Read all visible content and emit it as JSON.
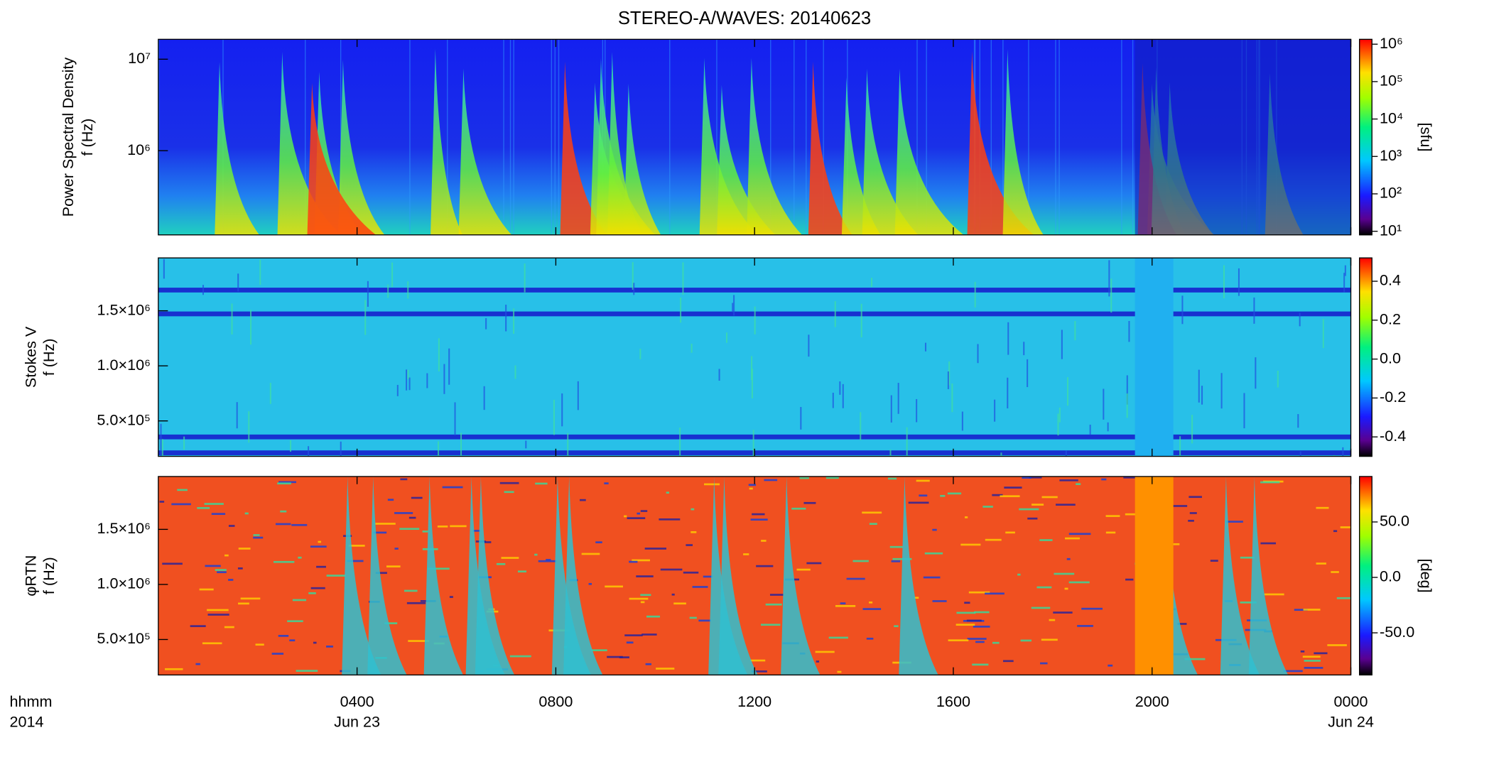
{
  "title": "STEREO-A/WAVES: 20140623",
  "x_axis": {
    "xlim": [
      0,
      24
    ],
    "xticks": [
      {
        "value": 4,
        "label": "0400"
      },
      {
        "value": 8,
        "label": "0800"
      },
      {
        "value": 12,
        "label": "1200"
      },
      {
        "value": 16,
        "label": "1600"
      },
      {
        "value": 20,
        "label": "2000"
      },
      {
        "value": 24,
        "label": "0000"
      }
    ],
    "dates": [
      {
        "value": 4,
        "label": "Jun 23"
      },
      {
        "value": 24,
        "label": "Jun 24"
      }
    ],
    "label": [
      "hhmm",
      "2014"
    ]
  },
  "chart_data": [
    {
      "type": "heatmap",
      "ylabel": [
        "Power Spectral Density",
        "f (Hz)"
      ],
      "yscale": "log",
      "ylim": [
        120000,
        16500000
      ],
      "yticks": [
        {
          "value": 1000000,
          "label": "10⁶"
        },
        {
          "value": 10000000,
          "label": "10⁷"
        }
      ],
      "colorbar": {
        "scale": "log",
        "lim": [
          8,
          1350000
        ],
        "ticks": [
          {
            "value": 10,
            "label": "10¹"
          },
          {
            "value": 100,
            "label": "10²"
          },
          {
            "value": 1000,
            "label": "10³"
          },
          {
            "value": 10000,
            "label": "10⁴"
          },
          {
            "value": 100000,
            "label": "10⁵"
          },
          {
            "value": 1000000,
            "label": "10⁶"
          }
        ],
        "label": "[sfu]"
      }
    },
    {
      "type": "heatmap",
      "ylabel": [
        "Stokes V",
        "f (Hz)"
      ],
      "yscale": "linear",
      "ylim": [
        178000,
        1980000
      ],
      "yticks": [
        {
          "value": 500000,
          "label": "5.0×10⁵"
        },
        {
          "value": 1000000,
          "label": "1.0×10⁶"
        },
        {
          "value": 1500000,
          "label": "1.5×10⁶"
        }
      ],
      "colorbar": {
        "scale": "linear",
        "lim": [
          -0.5,
          0.52
        ],
        "ticks": [
          -0.4,
          -0.2,
          0.0,
          0.2,
          0.4
        ]
      }
    },
    {
      "type": "heatmap",
      "ylabel": [
        "φRTN",
        "f (Hz)"
      ],
      "yscale": "linear",
      "ylim": [
        178000,
        1980000
      ],
      "yticks": [
        {
          "value": 500000,
          "label": "5.0×10⁵"
        },
        {
          "value": 1000000,
          "label": "1.0×10⁶"
        },
        {
          "value": 1500000,
          "label": "1.5×10⁶"
        }
      ],
      "colorbar": {
        "scale": "linear",
        "lim": [
          -88,
          91
        ],
        "ticks": [
          -50,
          0,
          50
        ],
        "label": "[deg]"
      }
    }
  ]
}
